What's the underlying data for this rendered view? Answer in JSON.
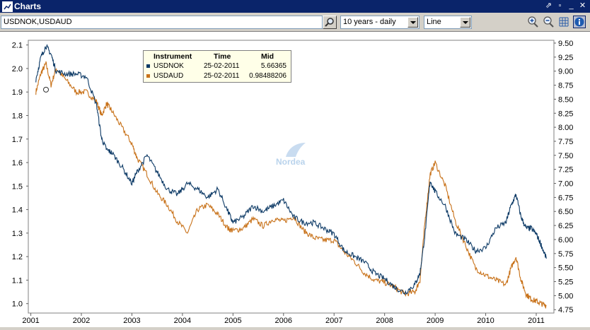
{
  "window": {
    "title": "Charts"
  },
  "toolbar": {
    "instrument_value": "USDNOK,USDAUD",
    "period_value": "10 years - daily",
    "chart_type_value": "Line"
  },
  "legend": {
    "headers": [
      "Instrument",
      "Time",
      "Mid"
    ],
    "rows": [
      {
        "instrument": "USDNOK",
        "time": "25-02-2011",
        "mid": "5.66365",
        "color": "#0d3a66"
      },
      {
        "instrument": "USDAUD",
        "time": "25-02-2011",
        "mid": "0.98488206",
        "color": "#c8721a"
      }
    ]
  },
  "watermark": "Nordea",
  "chart_data": {
    "type": "line",
    "x_ticks": [
      "2001",
      "2002",
      "2003",
      "2004",
      "2005",
      "2006",
      "2007",
      "2008",
      "2009",
      "2010",
      "2011"
    ],
    "left_axis": {
      "ticks": [
        "1.0",
        "1.1",
        "1.2",
        "1.3",
        "1.4",
        "1.5",
        "1.6",
        "1.7",
        "1.8",
        "1.9",
        "2.0",
        "2.1"
      ],
      "ylim": [
        0.96,
        2.12
      ]
    },
    "right_axis": {
      "ticks": [
        "4.75",
        "5.00",
        "5.25",
        "5.50",
        "5.75",
        "6.00",
        "6.25",
        "6.50",
        "6.75",
        "7.00",
        "7.25",
        "7.50",
        "7.75",
        "8.00",
        "8.25",
        "8.50",
        "8.75",
        "9.00",
        "9.25",
        "9.50"
      ],
      "ylim": [
        4.69,
        9.55
      ]
    },
    "series": [
      {
        "name": "USDNOK",
        "axis": "right",
        "color": "#0d3a66",
        "x": [
          2001.1,
          2001.2,
          2001.3,
          2001.4,
          2001.5,
          2001.7,
          2001.9,
          2002.1,
          2002.3,
          2002.4,
          2002.5,
          2002.6,
          2002.8,
          2003.0,
          2003.1,
          2003.3,
          2003.5,
          2003.7,
          2003.9,
          2004.1,
          2004.3,
          2004.5,
          2004.7,
          2004.9,
          2005.0,
          2005.2,
          2005.4,
          2005.6,
          2005.8,
          2006.0,
          2006.2,
          2006.4,
          2006.6,
          2006.8,
          2007.0,
          2007.2,
          2007.4,
          2007.6,
          2007.8,
          2008.0,
          2008.2,
          2008.4,
          2008.6,
          2008.7,
          2008.8,
          2008.9,
          2009.0,
          2009.2,
          2009.4,
          2009.6,
          2009.8,
          2010.0,
          2010.2,
          2010.4,
          2010.5,
          2010.6,
          2010.7,
          2010.8,
          2010.9,
          2011.0,
          2011.1,
          2011.2
        ],
        "values": [
          8.85,
          9.25,
          9.45,
          9.3,
          9.0,
          8.95,
          8.95,
          8.9,
          8.4,
          7.8,
          7.6,
          7.55,
          7.3,
          7.0,
          7.2,
          7.5,
          7.2,
          6.9,
          6.8,
          7.0,
          6.9,
          6.75,
          6.9,
          6.5,
          6.3,
          6.4,
          6.6,
          6.5,
          6.6,
          6.7,
          6.4,
          6.3,
          6.3,
          6.2,
          6.1,
          5.8,
          5.7,
          5.6,
          5.4,
          5.3,
          5.15,
          5.05,
          5.2,
          5.4,
          6.1,
          7.05,
          6.85,
          6.6,
          6.1,
          6.0,
          5.8,
          5.85,
          6.2,
          6.3,
          6.6,
          6.8,
          6.4,
          6.2,
          6.2,
          6.1,
          5.9,
          5.66
        ]
      },
      {
        "name": "USDAUD",
        "axis": "left",
        "color": "#c8721a",
        "x": [
          2001.1,
          2001.2,
          2001.3,
          2001.4,
          2001.5,
          2001.7,
          2001.9,
          2002.1,
          2002.3,
          2002.4,
          2002.5,
          2002.6,
          2002.8,
          2003.0,
          2003.1,
          2003.3,
          2003.5,
          2003.7,
          2003.9,
          2004.1,
          2004.3,
          2004.5,
          2004.7,
          2004.9,
          2005.0,
          2005.2,
          2005.4,
          2005.6,
          2005.8,
          2006.0,
          2006.2,
          2006.4,
          2006.6,
          2006.8,
          2007.0,
          2007.2,
          2007.4,
          2007.6,
          2007.8,
          2008.0,
          2008.2,
          2008.4,
          2008.6,
          2008.7,
          2008.8,
          2008.9,
          2009.0,
          2009.2,
          2009.4,
          2009.6,
          2009.8,
          2010.0,
          2010.2,
          2010.4,
          2010.5,
          2010.6,
          2010.7,
          2010.8,
          2010.9,
          2011.0,
          2011.1,
          2011.2
        ],
        "values": [
          1.9,
          1.98,
          2.02,
          1.93,
          2.0,
          1.95,
          1.9,
          1.9,
          1.86,
          1.8,
          1.85,
          1.82,
          1.75,
          1.68,
          1.62,
          1.55,
          1.47,
          1.42,
          1.35,
          1.3,
          1.4,
          1.42,
          1.38,
          1.32,
          1.31,
          1.32,
          1.36,
          1.33,
          1.36,
          1.35,
          1.37,
          1.31,
          1.28,
          1.27,
          1.27,
          1.22,
          1.18,
          1.13,
          1.1,
          1.09,
          1.07,
          1.04,
          1.05,
          1.1,
          1.35,
          1.55,
          1.6,
          1.5,
          1.35,
          1.25,
          1.15,
          1.12,
          1.1,
          1.08,
          1.15,
          1.2,
          1.1,
          1.04,
          1.02,
          1.01,
          1.0,
          0.99
        ]
      }
    ]
  }
}
